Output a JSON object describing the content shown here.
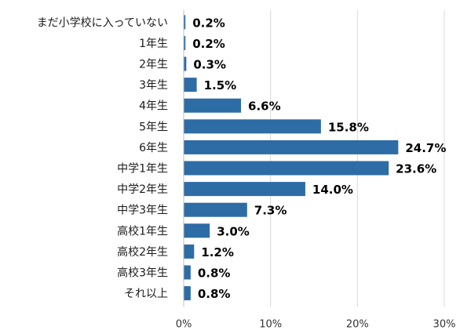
{
  "chart_data": {
    "type": "bar",
    "orientation": "horizontal",
    "categories": [
      "まだ小学校に入っていない",
      "1年生",
      "2年生",
      "3年生",
      "4年生",
      "5年生",
      "6年生",
      "中学1年生",
      "中学2年生",
      "中学3年生",
      "高校1年生",
      "高校2年生",
      "高校3年生",
      "それ以上"
    ],
    "values": [
      0.2,
      0.2,
      0.3,
      1.5,
      6.6,
      15.8,
      24.7,
      23.6,
      14.0,
      7.3,
      3.0,
      1.2,
      0.8,
      0.8
    ],
    "value_labels": [
      "0.2%",
      "0.2%",
      "0.3%",
      "1.5%",
      "6.6%",
      "15.8%",
      "24.7%",
      "23.6%",
      "14.0%",
      "7.3%",
      "3.0%",
      "1.2%",
      "0.8%",
      "0.8%"
    ],
    "xlim": [
      0,
      30
    ],
    "xticks": [
      0,
      10,
      20,
      30
    ],
    "xtick_labels": [
      "0%",
      "10%",
      "20%",
      "30%"
    ],
    "title": "",
    "xlabel": "",
    "ylabel": "",
    "grid": "vertical",
    "legend": "none",
    "colors": {
      "bar": "#2e6ca6",
      "grid": "#d9d9d9",
      "axis": "#bfbfbf"
    }
  }
}
